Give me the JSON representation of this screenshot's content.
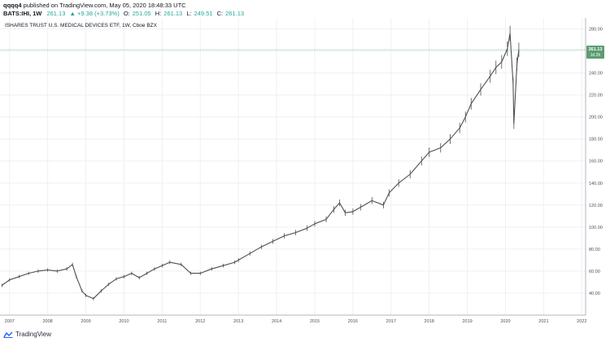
{
  "header": {
    "author": "qqqq4",
    "published_text": "published on TradingView.com, May 05, 2020 18:48:33 UTC",
    "symbol": "BATS:IHI, 1W",
    "last": "261.13",
    "change": "▲ +9.38 (+3.73%)",
    "open_label": "O:",
    "open": "251.05",
    "high_label": "H:",
    "high": "261.13",
    "low_label": "L:",
    "low": "249.51",
    "close_label": "C:",
    "close": "261.13"
  },
  "colors": {
    "up": "#26a69a",
    "candle": "#4f4f4f",
    "price_label": "#5d9c72"
  },
  "chart_data": {
    "type": "line",
    "title": "ISHARES TRUST U.S. MEDICAL DEVICES ETF, 1W, Cboe BZX",
    "x_ticks": [
      "2007",
      "2008",
      "2009",
      "2010",
      "2011",
      "2012",
      "2013",
      "2014",
      "2015",
      "2016",
      "2017",
      "2018",
      "2019",
      "2020",
      "2021",
      "2022"
    ],
    "y_ticks": [
      "40.00",
      "60.00",
      "80.00",
      "100.00",
      "120.00",
      "140.00",
      "160.00",
      "180.00",
      "200.00",
      "220.00",
      "240.00",
      "260.00",
      "280.00"
    ],
    "ylim": [
      20,
      290
    ],
    "xlim": [
      2006.75,
      2022.1
    ],
    "series": [
      {
        "x": [
          2006.8,
          2007.0,
          2007.25,
          2007.5,
          2007.75,
          2008.0,
          2008.25,
          2008.5,
          2008.65,
          2008.75,
          2008.9,
          2009.0,
          2009.2,
          2009.4,
          2009.6,
          2009.8,
          2010.0,
          2010.2,
          2010.4,
          2010.6,
          2010.8,
          2011.0,
          2011.2,
          2011.5,
          2011.75,
          2012.0,
          2012.3,
          2012.6,
          2012.9,
          2013.0,
          2013.3,
          2013.6,
          2013.9,
          2014.2,
          2014.5,
          2014.8,
          2015.0,
          2015.3,
          2015.5,
          2015.65,
          2015.8,
          2016.0,
          2016.2,
          2016.5,
          2016.8,
          2016.95,
          2017.2,
          2017.5,
          2017.8,
          2018.0,
          2018.3,
          2018.55,
          2018.8,
          2018.95,
          2019.1,
          2019.35,
          2019.6,
          2019.75,
          2019.9,
          2020.05,
          2020.12,
          2020.2,
          2020.22,
          2020.3,
          2020.35
        ],
        "values": [
          47,
          52,
          55,
          58,
          60,
          61,
          60,
          62,
          66,
          55,
          42,
          38,
          35,
          42,
          48,
          53,
          55,
          58,
          54,
          58,
          62,
          65,
          68,
          66,
          58,
          58,
          62,
          65,
          68,
          70,
          76,
          82,
          87,
          92,
          95,
          99,
          103,
          107,
          116,
          122,
          113,
          114,
          118,
          124,
          120,
          131,
          140,
          148,
          160,
          168,
          172,
          180,
          190,
          200,
          212,
          225,
          237,
          245,
          250,
          262,
          276,
          230,
          194,
          248,
          261
        ]
      }
    ]
  },
  "price_label": {
    "value": "261.13",
    "countdown": "1d 2h"
  },
  "footer": {
    "brand": "TradingView"
  }
}
